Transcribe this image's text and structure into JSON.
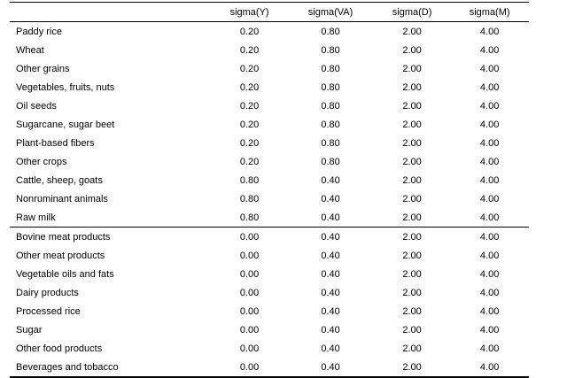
{
  "table": {
    "headers": [
      "",
      "sigma(Y)",
      "sigma(VA)",
      "sigma(D)",
      "sigma(M)"
    ],
    "rows": [
      {
        "label": "Paddy rice",
        "values": [
          "0.20",
          "0.80",
          "2.00",
          "4.00"
        ]
      },
      {
        "label": "Wheat",
        "values": [
          "0.20",
          "0.80",
          "2.00",
          "4.00"
        ]
      },
      {
        "label": "Other grains",
        "values": [
          "0.20",
          "0.80",
          "2.00",
          "4.00"
        ]
      },
      {
        "label": "Vegetables, fruits, nuts",
        "values": [
          "0.20",
          "0.80",
          "2.00",
          "4.00"
        ]
      },
      {
        "label": "Oil seeds",
        "values": [
          "0.20",
          "0.80",
          "2.00",
          "4.00"
        ]
      },
      {
        "label": "Sugarcane, sugar beet",
        "values": [
          "0.20",
          "0.80",
          "2.00",
          "4.00"
        ]
      },
      {
        "label": "Plant-based fibers",
        "values": [
          "0.20",
          "0.80",
          "2.00",
          "4.00"
        ]
      },
      {
        "label": "Other crops",
        "values": [
          "0.20",
          "0.80",
          "2.00",
          "4.00"
        ]
      },
      {
        "label": "Cattle, sheep, goats",
        "values": [
          "0.80",
          "0.40",
          "2.00",
          "4.00"
        ]
      },
      {
        "label": "Nonruminant animals",
        "values": [
          "0.80",
          "0.40",
          "2.00",
          "4.00"
        ]
      },
      {
        "label": "Raw milk",
        "values": [
          "0.80",
          "0.40",
          "2.00",
          "4.00"
        ]
      },
      {
        "label": "Bovine meat products",
        "values": [
          "0.00",
          "0.40",
          "2.00",
          "4.00"
        ]
      },
      {
        "label": "Other meat products",
        "values": [
          "0.00",
          "0.40",
          "2.00",
          "4.00"
        ]
      },
      {
        "label": "Vegetable oils and fats",
        "values": [
          "0.00",
          "0.40",
          "2.00",
          "4.00"
        ]
      },
      {
        "label": "Dairy products",
        "values": [
          "0.00",
          "0.40",
          "2.00",
          "4.00"
        ]
      },
      {
        "label": "Processed rice",
        "values": [
          "0.00",
          "0.40",
          "2.00",
          "4.00"
        ]
      },
      {
        "label": "Sugar",
        "values": [
          "0.00",
          "0.40",
          "2.00",
          "4.00"
        ]
      },
      {
        "label": "Other food products",
        "values": [
          "0.00",
          "0.40",
          "2.00",
          "4.00"
        ]
      },
      {
        "label": "Beverages and tobacco",
        "values": [
          "0.00",
          "0.40",
          "2.00",
          "4.00"
        ]
      }
    ]
  }
}
